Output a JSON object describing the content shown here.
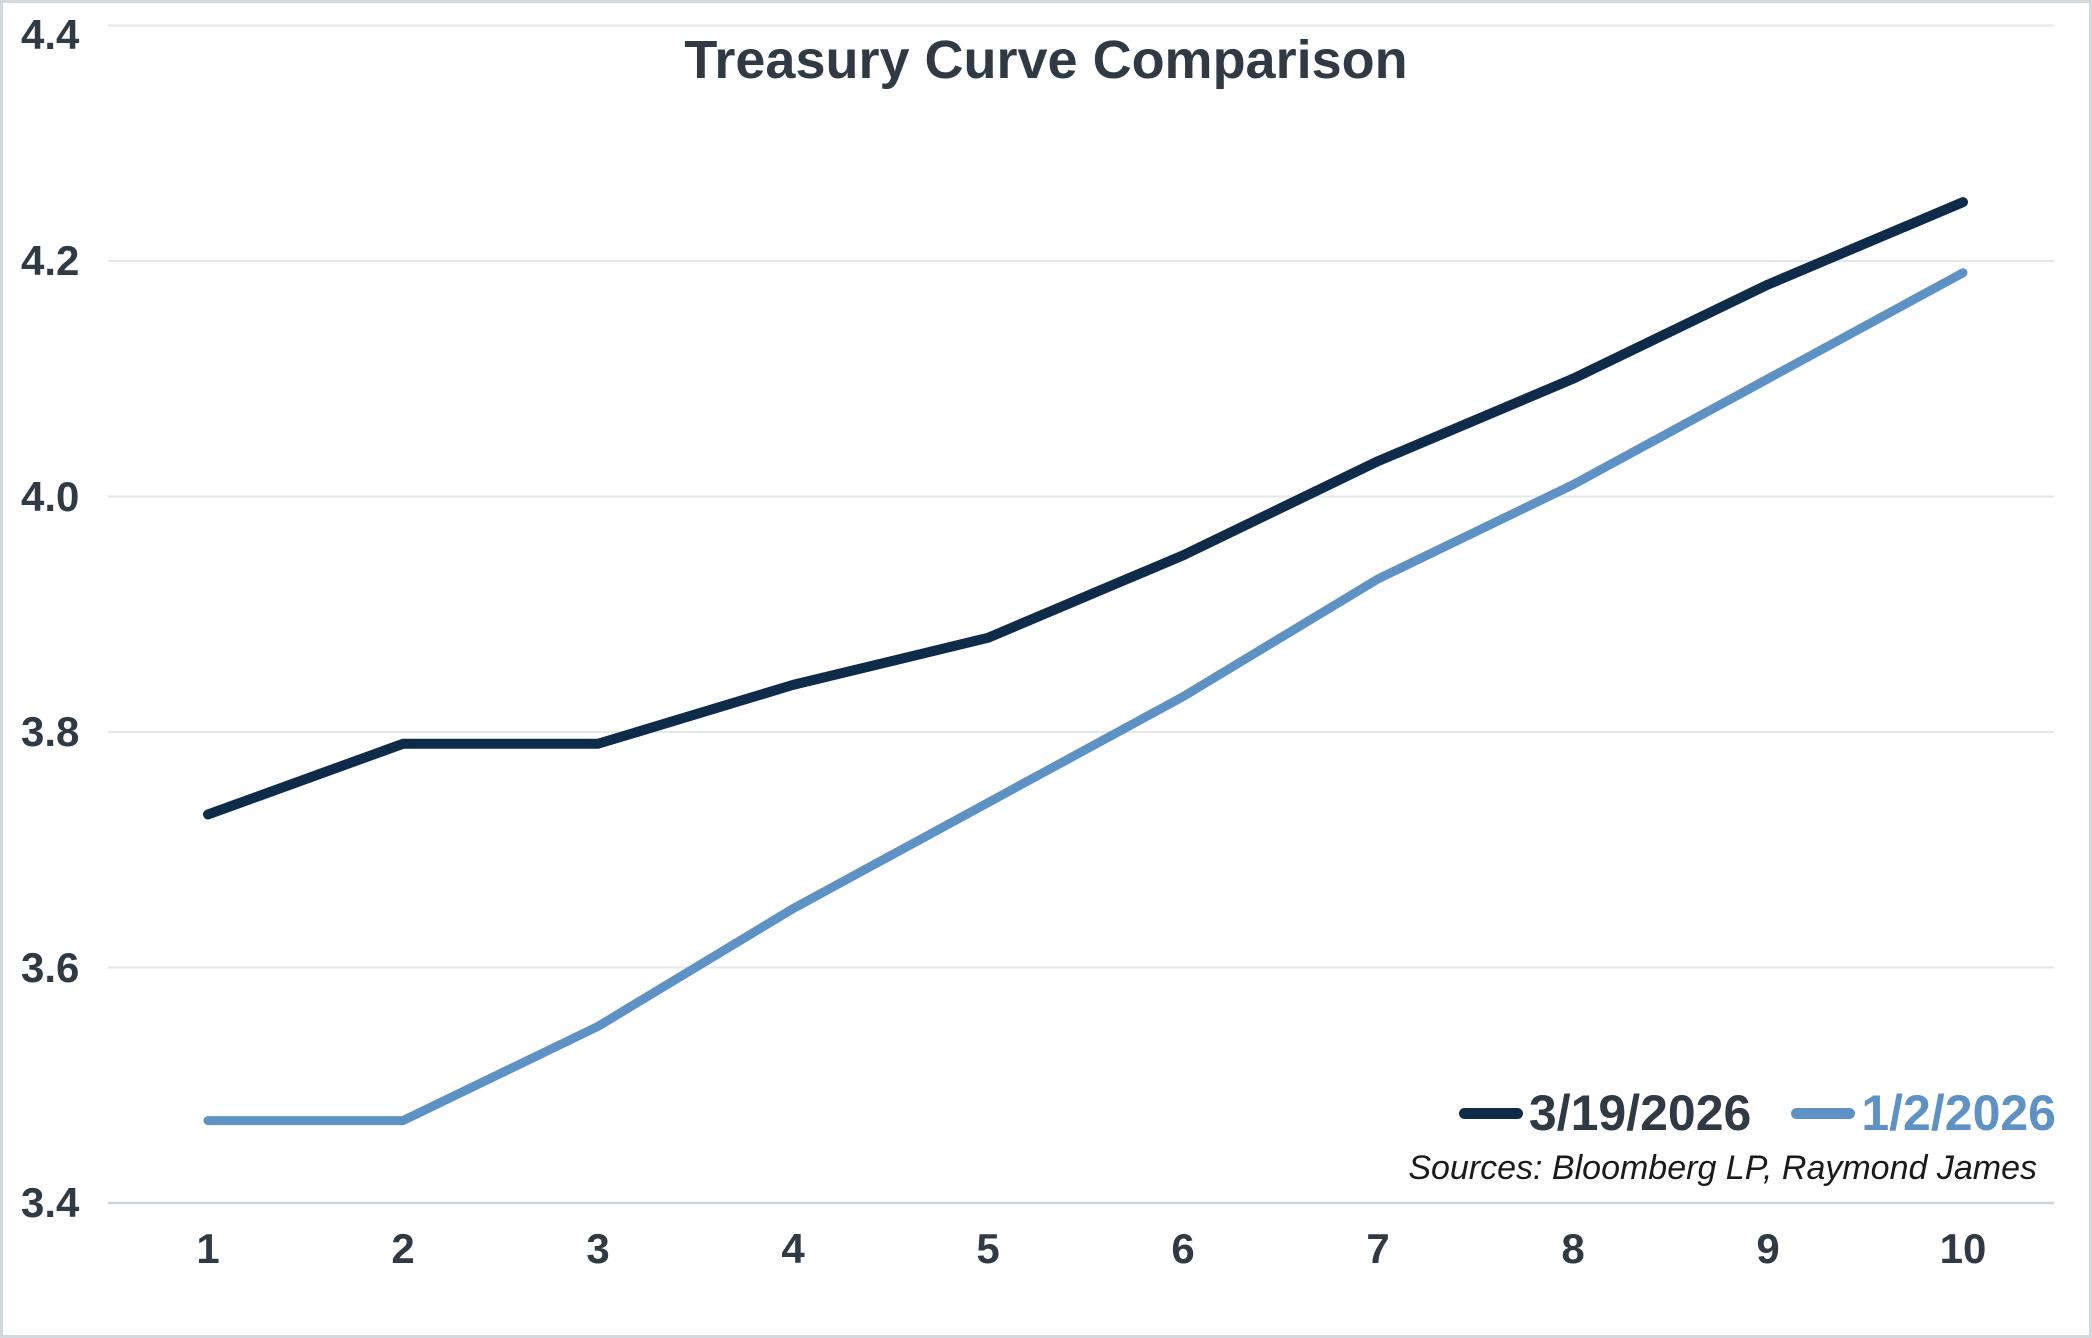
{
  "page": {
    "background": "#ffffff",
    "frame_border_color": "#d2d9dd"
  },
  "title": "Treasury Curve Comparison",
  "source_note": "Sources: Bloomberg LP, Raymond James",
  "colors": {
    "title_text": "#2f3a44",
    "axis_text": "#2f3a44",
    "gridline": "#e3e8eb",
    "axis_line": "#ccd3d8",
    "series1": "#0e2b4a",
    "series2": "#5e92c5",
    "source_text": "#1a1a1a"
  },
  "chart_data": {
    "type": "line",
    "title": "Treasury Curve Comparison",
    "x": [
      1,
      2,
      3,
      4,
      5,
      6,
      7,
      8,
      9,
      10
    ],
    "x_ticks": [
      "1",
      "2",
      "3",
      "4",
      "5",
      "6",
      "7",
      "8",
      "9",
      "10"
    ],
    "y_ticks": [
      "3.4",
      "3.6",
      "3.8",
      "4.0",
      "4.2",
      "4.4"
    ],
    "ylim": [
      3.4,
      4.4
    ],
    "xlim": [
      1,
      10
    ],
    "xlabel": "",
    "ylabel": "",
    "grid": "horizontal",
    "legend_position": "inside-bottom-right",
    "series": [
      {
        "name": "3/19/2026",
        "color": "#0e2b4a",
        "values": [
          3.73,
          3.79,
          3.79,
          3.84,
          3.88,
          3.95,
          4.03,
          4.1,
          4.18,
          4.25
        ]
      },
      {
        "name": "1/2/2026",
        "color": "#5e92c5",
        "values": [
          3.47,
          3.47,
          3.55,
          3.65,
          3.74,
          3.83,
          3.93,
          4.01,
          4.1,
          4.19
        ]
      }
    ],
    "annotations": [
      "Sources: Bloomberg LP, Raymond James"
    ]
  },
  "legend": {
    "items": [
      {
        "label": "3/19/2026",
        "swatch_color": "#0e2b4a",
        "label_color": "#2f3a44"
      },
      {
        "label": "1/2/2026",
        "swatch_color": "#5e92c5",
        "label_color": "#5e92c5"
      }
    ]
  }
}
